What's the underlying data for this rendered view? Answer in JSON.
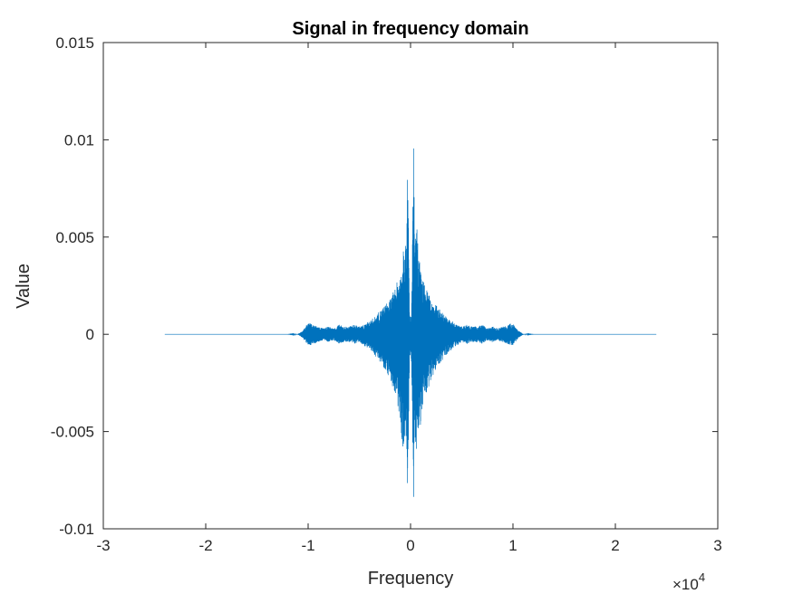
{
  "chart_data": {
    "type": "line",
    "title": "Signal in frequency domain",
    "xlabel": "Frequency",
    "ylabel": "Value",
    "x_exponent": {
      "base": "×10",
      "power": "4"
    },
    "xlim": [
      -30000,
      30000
    ],
    "ylim": [
      -0.01,
      0.015
    ],
    "xticks": [
      -30000,
      -20000,
      -10000,
      0,
      10000,
      20000,
      30000
    ],
    "xtick_labels": [
      "-3",
      "-2",
      "-1",
      "0",
      "1",
      "2",
      "3"
    ],
    "yticks": [
      -0.01,
      -0.005,
      0,
      0.005,
      0.01,
      0.015
    ],
    "ytick_labels": [
      "-0.01",
      "-0.005",
      "0",
      "0.005",
      "0.01",
      "0.015"
    ],
    "grid": false,
    "line_color": "#0072BD",
    "series": [
      {
        "x": [
          -24000,
          -18000,
          -12000,
          -11000,
          -10500,
          -10000,
          -9500,
          -9000,
          -8500,
          -8000,
          -7500,
          -7000,
          -6500,
          -6000,
          -5500,
          -5000,
          -4500,
          -4000,
          -3500,
          -3000,
          -2500,
          -2000,
          -1500,
          -1000,
          -800,
          -600,
          -400,
          -300,
          -200,
          -100,
          0,
          100,
          200,
          300,
          400,
          600,
          800,
          1000,
          1500,
          2000,
          2500,
          3000,
          3500,
          4000,
          4500,
          5000,
          5500,
          6000,
          6500,
          7000,
          7500,
          8000,
          8500,
          9000,
          9500,
          10000,
          10500,
          11000,
          12000,
          18000,
          24000
        ],
        "upper": [
          0,
          0,
          0,
          2e-05,
          0.0002,
          0.0006,
          0.0005,
          0.0004,
          0.0003,
          0.0004,
          0.0003,
          0.0005,
          0.0004,
          0.0004,
          0.0005,
          0.0004,
          0.0005,
          0.0007,
          0.0009,
          0.0012,
          0.0015,
          0.0018,
          0.0024,
          0.0032,
          0.0042,
          0.0058,
          0.0042,
          0.0108,
          0.0055,
          0.0012,
          0.0009,
          0.0012,
          0.0055,
          0.0108,
          0.0042,
          0.0058,
          0.0042,
          0.0032,
          0.0024,
          0.0018,
          0.0015,
          0.0012,
          0.0009,
          0.0007,
          0.0005,
          0.0004,
          0.0005,
          0.0004,
          0.0004,
          0.0005,
          0.0003,
          0.0004,
          0.0003,
          0.0004,
          0.0005,
          0.0006,
          0.0002,
          2e-05,
          0,
          0,
          0
        ],
        "lower": [
          0,
          0,
          0,
          -2e-05,
          -0.0002,
          -0.0006,
          -0.0005,
          -0.0004,
          -0.0003,
          -0.0004,
          -0.0003,
          -0.0005,
          -0.0004,
          -0.0004,
          -0.0005,
          -0.0004,
          -0.0006,
          -0.0008,
          -0.0011,
          -0.0014,
          -0.0018,
          -0.0023,
          -0.0032,
          -0.0045,
          -0.0058,
          -0.0061,
          -0.0053,
          -0.0092,
          -0.0058,
          -0.0015,
          -0.0011,
          -0.0015,
          -0.0058,
          -0.0092,
          -0.0053,
          -0.0061,
          -0.0058,
          -0.0045,
          -0.0032,
          -0.0023,
          -0.0018,
          -0.0014,
          -0.0011,
          -0.0008,
          -0.0006,
          -0.0004,
          -0.0005,
          -0.0004,
          -0.0004,
          -0.0005,
          -0.0003,
          -0.0004,
          -0.0003,
          -0.0004,
          -0.0005,
          -0.0006,
          -0.0002,
          -2e-05,
          0,
          0,
          0
        ]
      }
    ]
  }
}
